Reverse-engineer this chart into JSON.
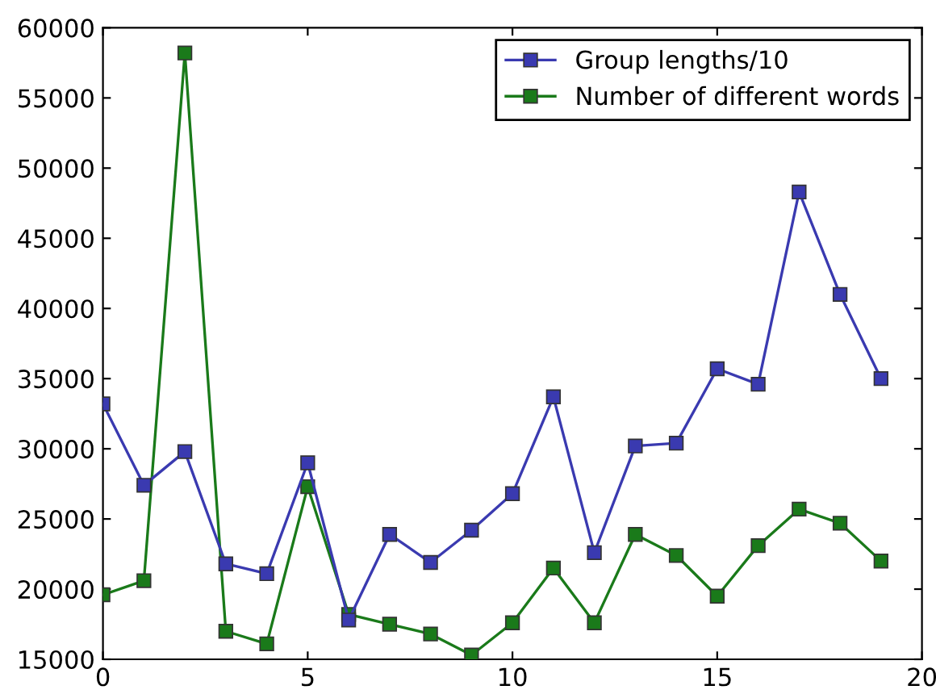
{
  "chart_data": {
    "type": "line",
    "x": [
      0,
      1,
      2,
      3,
      4,
      5,
      6,
      7,
      8,
      9,
      10,
      11,
      12,
      13,
      14,
      15,
      16,
      17,
      18,
      19
    ],
    "series": [
      {
        "name": "Group lengths/10",
        "color": "#3a3ab0",
        "values": [
          33200,
          27400,
          29800,
          21800,
          21100,
          29000,
          17800,
          23900,
          21900,
          24200,
          26800,
          33700,
          22600,
          30200,
          30400,
          35700,
          34600,
          48300,
          41000,
          35000
        ]
      },
      {
        "name": "Number of different words",
        "color": "#1a7a1a",
        "values": [
          19600,
          20600,
          58200,
          17000,
          16100,
          27300,
          18200,
          17500,
          16800,
          15300,
          17600,
          21500,
          17600,
          23900,
          22400,
          19500,
          23100,
          25700,
          24700,
          22000
        ]
      }
    ],
    "xlim": [
      0,
      20
    ],
    "xticks": [
      0,
      5,
      10,
      15,
      20
    ],
    "ylim": [
      15000,
      60000
    ],
    "yticks": [
      15000,
      20000,
      25000,
      30000,
      35000,
      40000,
      45000,
      50000,
      55000,
      60000
    ],
    "grid": false,
    "legend": "top right",
    "marker": "square",
    "line_style": "solid"
  }
}
